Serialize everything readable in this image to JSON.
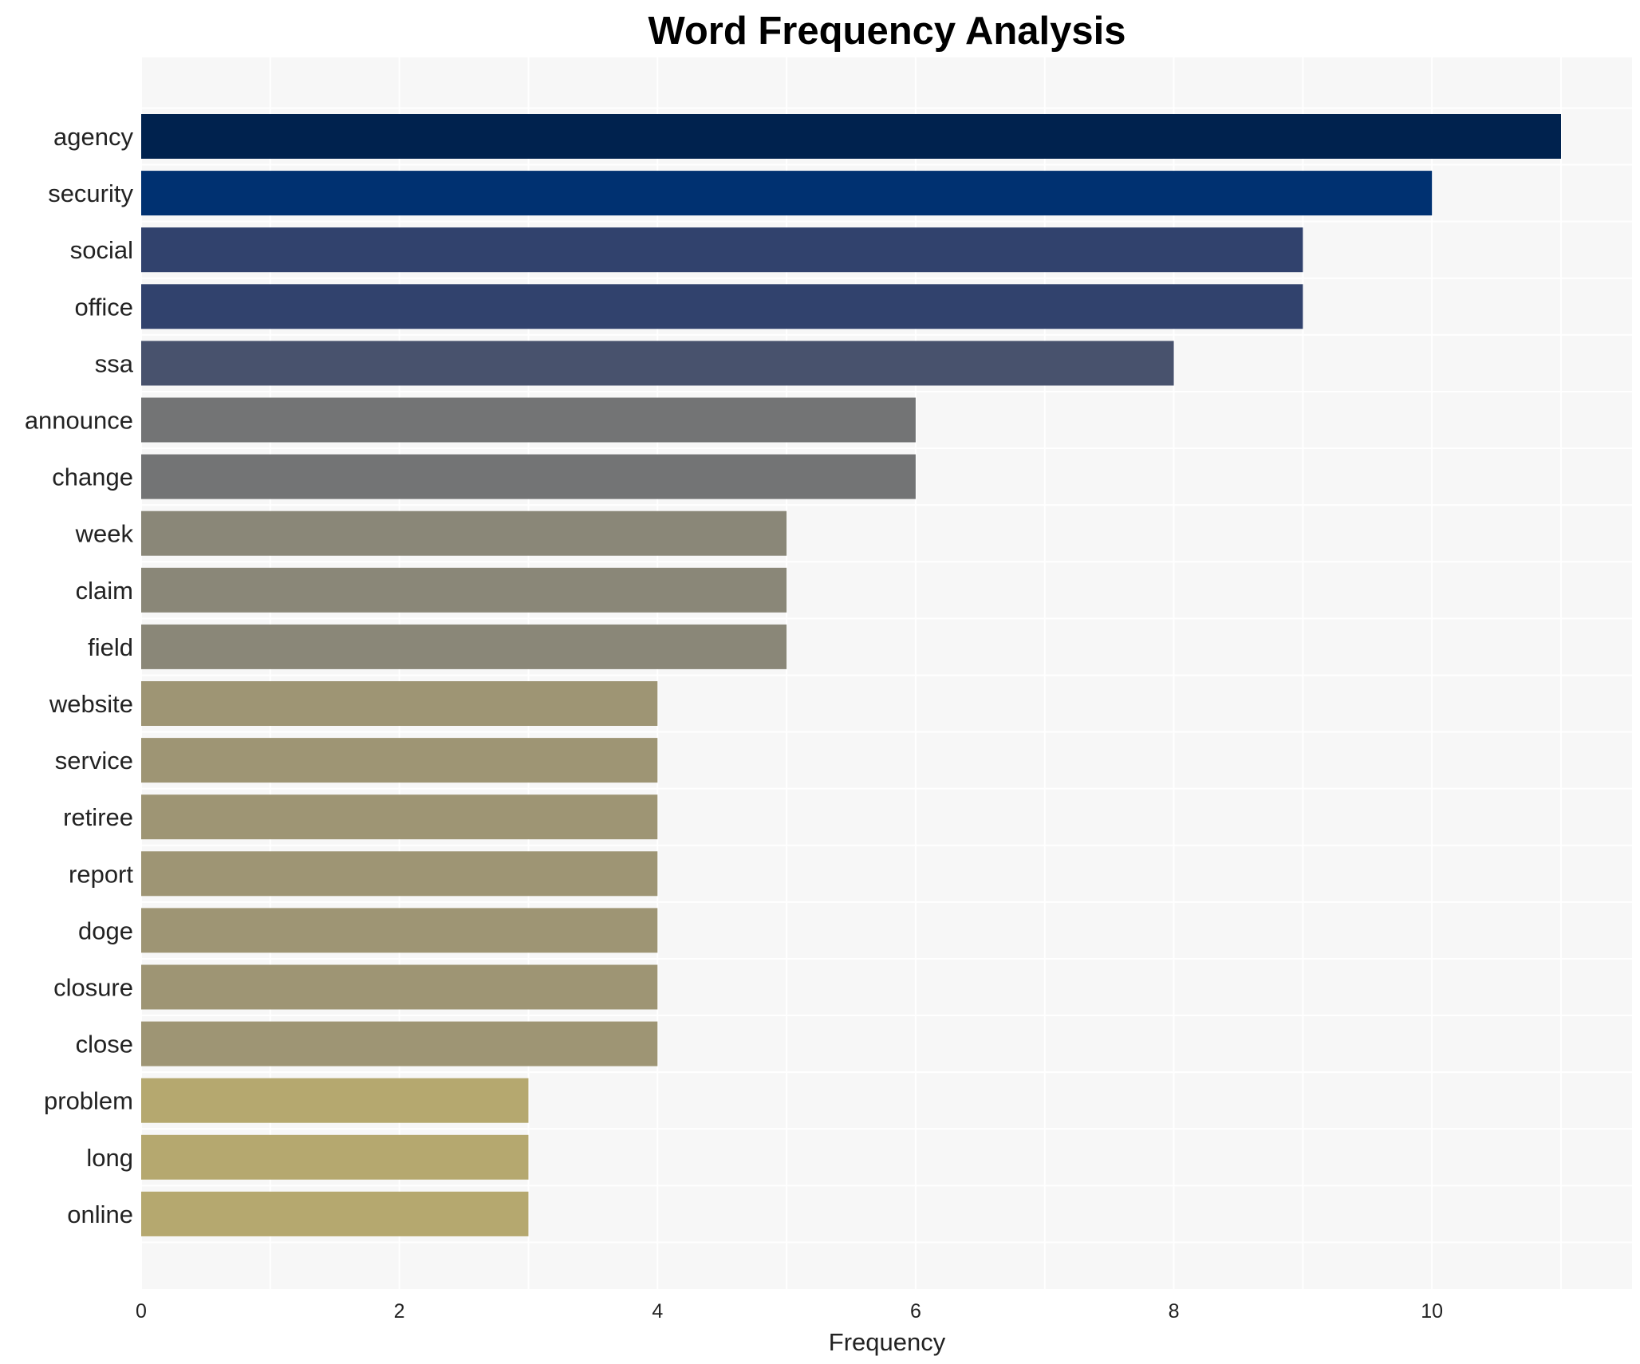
{
  "chart_data": {
    "type": "bar",
    "orientation": "horizontal",
    "title": "Word Frequency Analysis",
    "xlabel": "Frequency",
    "ylabel": "",
    "xlim": [
      0,
      11.55
    ],
    "xticks": [
      0,
      2,
      4,
      6,
      8,
      10
    ],
    "grid": true,
    "categories": [
      "agency",
      "security",
      "social",
      "office",
      "ssa",
      "announce",
      "change",
      "week",
      "claim",
      "field",
      "website",
      "service",
      "retiree",
      "report",
      "doge",
      "closure",
      "close",
      "problem",
      "long",
      "online"
    ],
    "values": [
      11,
      10,
      9,
      9,
      8,
      6,
      6,
      5,
      5,
      5,
      4,
      4,
      4,
      4,
      4,
      4,
      4,
      3,
      3,
      3
    ],
    "colors": [
      "#00224e",
      "#003171",
      "#31426d",
      "#31426d",
      "#48526d",
      "#737475",
      "#737475",
      "#8a8778",
      "#8a8778",
      "#8a8778",
      "#9e9574",
      "#9e9574",
      "#9e9574",
      "#9e9574",
      "#9e9574",
      "#9e9574",
      "#9e9574",
      "#b5a86f",
      "#b5a86f",
      "#b5a86f"
    ],
    "background": "#f7f7f7"
  }
}
